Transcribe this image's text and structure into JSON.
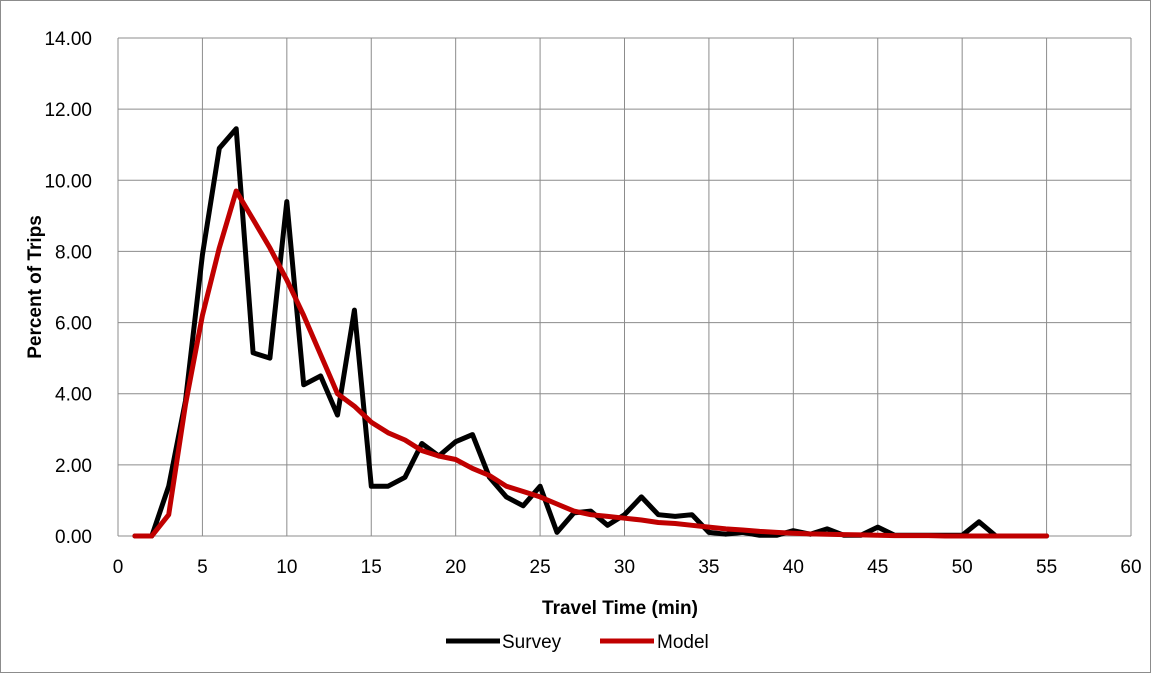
{
  "chart_data": {
    "type": "line",
    "title": "",
    "xlabel": "Travel Time (min)",
    "ylabel": "Percent of Trips",
    "xlim": [
      0,
      60
    ],
    "ylim": [
      0,
      14
    ],
    "x_ticks": [
      "0",
      "5",
      "10",
      "15",
      "20",
      "25",
      "30",
      "35",
      "40",
      "45",
      "50",
      "55",
      "60"
    ],
    "y_ticks": [
      "0.00",
      "2.00",
      "4.00",
      "6.00",
      "8.00",
      "10.00",
      "12.00",
      "14.00"
    ],
    "grid": true,
    "legend_position": "bottom",
    "x": [
      1,
      2,
      3,
      4,
      5,
      6,
      7,
      8,
      9,
      10,
      11,
      12,
      13,
      14,
      15,
      16,
      17,
      18,
      19,
      20,
      21,
      22,
      23,
      24,
      25,
      26,
      27,
      28,
      29,
      30,
      31,
      32,
      33,
      34,
      35,
      36,
      37,
      38,
      39,
      40,
      41,
      42,
      43,
      44,
      45,
      46,
      47,
      48,
      49,
      50,
      51,
      52,
      53,
      54,
      55
    ],
    "series": [
      {
        "name": "Survey",
        "color": "#000000",
        "values": [
          0,
          0,
          1.4,
          3.8,
          7.9,
          10.9,
          11.45,
          5.15,
          5.0,
          9.4,
          4.25,
          4.5,
          3.4,
          6.35,
          1.4,
          1.4,
          1.65,
          2.6,
          2.25,
          2.65,
          2.85,
          1.65,
          1.1,
          0.85,
          1.4,
          0.1,
          0.65,
          0.7,
          0.3,
          0.6,
          1.1,
          0.6,
          0.55,
          0.6,
          0.1,
          0.05,
          0.1,
          0.02,
          0.02,
          0.15,
          0.05,
          0.2,
          0.02,
          0.02,
          0.25,
          0.02,
          0.02,
          0.02,
          0.02,
          0.02,
          0.4,
          0.0,
          0.0,
          0.0,
          0.0
        ]
      },
      {
        "name": "Model",
        "color": "#c00000",
        "values": [
          0,
          0,
          0.6,
          3.7,
          6.2,
          8.1,
          9.7,
          8.9,
          8.1,
          7.2,
          6.2,
          5.1,
          4.0,
          3.65,
          3.2,
          2.9,
          2.7,
          2.4,
          2.25,
          2.15,
          1.9,
          1.7,
          1.4,
          1.25,
          1.1,
          0.9,
          0.7,
          0.6,
          0.55,
          0.5,
          0.45,
          0.38,
          0.35,
          0.3,
          0.25,
          0.2,
          0.17,
          0.13,
          0.1,
          0.08,
          0.06,
          0.05,
          0.04,
          0.03,
          0.02,
          0.01,
          0.01,
          0.01,
          0.0,
          0.0,
          0.0,
          0.0,
          0.0,
          0.0,
          0.0
        ]
      }
    ]
  }
}
